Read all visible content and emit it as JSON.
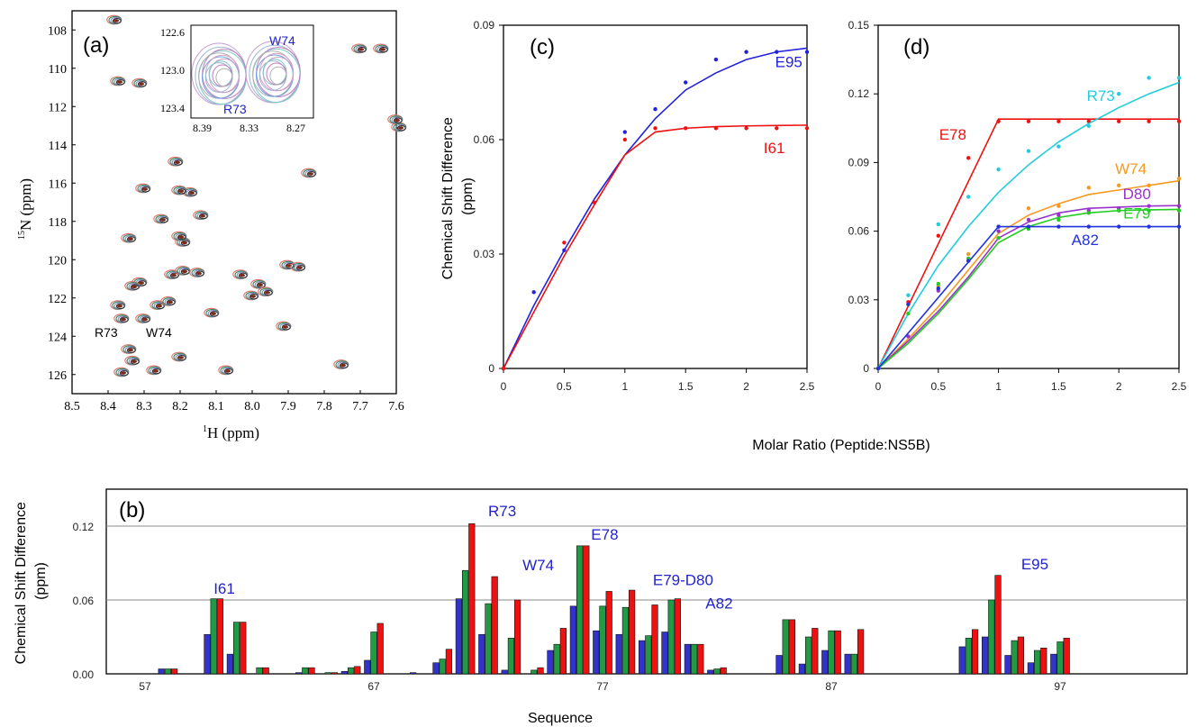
{
  "shared_xlabel": "Molar Ratio (Peptide:NS5B)",
  "chart_data": [
    {
      "panel": "(a)",
      "type": "scatter",
      "xlabel_sup": "1",
      "xlabel_main": "H (ppm)",
      "ylabel_sup": "15",
      "ylabel_main": "N (ppm)",
      "xlim": [
        8.5,
        7.6
      ],
      "ylim": [
        127,
        107
      ],
      "xticks": [
        "8.5",
        "8.4",
        "8.3",
        "8.2",
        "8.1",
        "8.0",
        "7.9",
        "7.8",
        "7.7",
        "7.6"
      ],
      "yticks": [
        "108",
        "110",
        "112",
        "114",
        "116",
        "118",
        "120",
        "122",
        "124",
        "126"
      ],
      "annotations": [
        "R73",
        "W74"
      ],
      "peaks": [
        [
          8.38,
          107.5
        ],
        [
          8.37,
          110.7
        ],
        [
          8.31,
          110.8
        ],
        [
          7.7,
          109.0
        ],
        [
          7.64,
          109.0
        ],
        [
          7.59,
          113.1
        ],
        [
          7.6,
          112.7
        ],
        [
          8.21,
          114.9
        ],
        [
          8.3,
          116.3
        ],
        [
          8.17,
          116.5
        ],
        [
          8.2,
          116.4
        ],
        [
          7.84,
          115.5
        ],
        [
          8.25,
          117.9
        ],
        [
          8.14,
          117.7
        ],
        [
          8.34,
          118.9
        ],
        [
          8.19,
          119.1
        ],
        [
          8.2,
          118.8
        ],
        [
          8.31,
          121.2
        ],
        [
          8.33,
          121.4
        ],
        [
          8.22,
          120.8
        ],
        [
          8.19,
          120.6
        ],
        [
          8.15,
          120.7
        ],
        [
          8.03,
          120.8
        ],
        [
          7.98,
          121.3
        ],
        [
          7.9,
          120.3
        ],
        [
          7.87,
          120.4
        ],
        [
          8.0,
          121.9
        ],
        [
          7.96,
          121.7
        ],
        [
          8.37,
          122.4
        ],
        [
          8.26,
          122.4
        ],
        [
          8.23,
          122.2
        ],
        [
          8.11,
          122.8
        ],
        [
          8.36,
          123.1
        ],
        [
          8.3,
          123.1
        ],
        [
          7.91,
          123.5
        ],
        [
          8.34,
          124.7
        ],
        [
          8.33,
          125.3
        ],
        [
          8.2,
          125.1
        ],
        [
          8.36,
          125.9
        ],
        [
          8.27,
          125.8
        ],
        [
          8.07,
          125.8
        ],
        [
          7.75,
          125.5
        ]
      ]
    },
    {
      "panel": "inset",
      "type": "scatter",
      "xticks": [
        "8.39",
        "8.33",
        "8.27"
      ],
      "yticks": [
        "122.6",
        "123.0",
        "123.4"
      ],
      "labels": [
        "W74",
        "R73"
      ]
    },
    {
      "panel": "(b)",
      "type": "bar",
      "xlabel": "Sequence",
      "ylabel": "Chemical Shift Difference (ppm)",
      "ylim": [
        0,
        0.15
      ],
      "yticks": [
        "0.00",
        "0.06",
        "0.12"
      ],
      "xticks": [
        "57",
        "67",
        "77",
        "87",
        "97"
      ],
      "x": [
        57,
        58,
        59,
        60,
        61,
        62,
        63,
        64,
        65,
        66,
        67,
        68,
        69,
        70,
        71,
        72,
        73,
        74,
        75,
        76,
        77,
        78,
        79,
        80,
        81,
        82,
        83,
        84,
        85,
        86,
        87,
        88,
        89,
        90,
        91,
        92,
        93,
        94,
        95,
        96,
        97,
        98
      ],
      "series": [
        {
          "color": "#3333cc",
          "values": [
            0,
            0.004,
            0,
            0.032,
            0.016,
            0,
            0,
            0.001,
            0,
            0.002,
            0.011,
            0,
            0.001,
            0.009,
            0.061,
            0.032,
            0.003,
            0,
            0.019,
            0.055,
            0.035,
            0.032,
            0.027,
            0.034,
            0.024,
            0.003,
            0,
            0,
            0.015,
            0.008,
            0.019,
            0.016,
            0,
            0,
            0,
            0,
            0.022,
            0.03,
            0.015,
            0.009,
            0.016,
            0
          ]
        },
        {
          "color": "#229944",
          "values": [
            0,
            0.004,
            0,
            0.061,
            0.042,
            0.005,
            0,
            0.005,
            0.001,
            0.005,
            0.034,
            0,
            0,
            0.012,
            0.084,
            0.057,
            0.029,
            0.003,
            0.024,
            0.104,
            0.055,
            0.054,
            0.031,
            0.06,
            0.024,
            0.004,
            0,
            0,
            0.044,
            0.03,
            0.035,
            0.016,
            0,
            0,
            0,
            0,
            0.029,
            0.06,
            0.027,
            0.019,
            0.026,
            0
          ]
        },
        {
          "color": "#ee1111",
          "values": [
            0,
            0.004,
            0,
            0.061,
            0.042,
            0.005,
            0,
            0.005,
            0.001,
            0.006,
            0.041,
            0,
            0,
            0.02,
            0.122,
            0.079,
            0.06,
            0.005,
            0.037,
            0.104,
            0.067,
            0.068,
            0.056,
            0.061,
            0.024,
            0.005,
            0,
            0,
            0.044,
            0.037,
            0.035,
            0.036,
            0,
            0,
            0,
            0,
            0.036,
            0.08,
            0.03,
            0.021,
            0.029,
            0
          ]
        }
      ],
      "labels": [
        {
          "text": "I61",
          "x": 60,
          "y": 0.065
        },
        {
          "text": "R73",
          "x": 72,
          "y": 0.128
        },
        {
          "text": "W74",
          "x": 73.5,
          "y": 0.084
        },
        {
          "text": "E78",
          "x": 76.5,
          "y": 0.109
        },
        {
          "text": "E79-D80",
          "x": 79.2,
          "y": 0.072
        },
        {
          "text": "A82",
          "x": 81.5,
          "y": 0.053
        },
        {
          "text": "E95",
          "x": 95.3,
          "y": 0.085
        }
      ]
    },
    {
      "panel": "(c)",
      "type": "line",
      "ylabel": "Chemical Shift Difference (ppm)",
      "xlim": [
        0,
        2.5
      ],
      "ylim": [
        0,
        0.09
      ],
      "xticks": [
        "0",
        "0.5",
        "1",
        "1.5",
        "2",
        "2.5"
      ],
      "yticks": [
        "0",
        "0.03",
        "0.06",
        "0.09"
      ],
      "series": [
        {
          "name": "E95",
          "color": "#2222dd",
          "label_pos": [
            2.35,
            0.079
          ],
          "x": [
            0,
            0.25,
            0.5,
            1,
            1.25,
            1.5,
            1.75,
            2,
            2.25,
            2.5
          ],
          "y": [
            0,
            0.02,
            0.031,
            0.062,
            0.068,
            0.075,
            0.081,
            0.083,
            0.083,
            0.083
          ],
          "fit": [
            [
              0,
              0
            ],
            [
              0.25,
              0.0165
            ],
            [
              0.5,
              0.031
            ],
            [
              0.75,
              0.0445
            ],
            [
              1,
              0.056
            ],
            [
              1.25,
              0.0655
            ],
            [
              1.5,
              0.073
            ],
            [
              1.75,
              0.0775
            ],
            [
              2,
              0.081
            ],
            [
              2.25,
              0.083
            ],
            [
              2.5,
              0.084
            ]
          ]
        },
        {
          "name": "I61",
          "color": "#ee1111",
          "label_pos": [
            2.23,
            0.0565
          ],
          "x": [
            0,
            0.5,
            0.75,
            1,
            1.25,
            1.5,
            1.75,
            2,
            2.25,
            2.5
          ],
          "y": [
            0,
            0.033,
            0.0435,
            0.06,
            0.063,
            0.063,
            0.063,
            0.063,
            0.063,
            0.063
          ],
          "fit": [
            [
              0,
              0
            ],
            [
              0.25,
              0.0148
            ],
            [
              0.5,
              0.0295
            ],
            [
              0.75,
              0.043
            ],
            [
              1,
              0.056
            ],
            [
              1.25,
              0.062
            ],
            [
              1.5,
              0.063
            ],
            [
              1.75,
              0.0634
            ],
            [
              2,
              0.0636
            ],
            [
              2.25,
              0.0637
            ],
            [
              2.5,
              0.0638
            ]
          ]
        }
      ]
    },
    {
      "panel": "(d)",
      "type": "line",
      "xlim": [
        0,
        2.5
      ],
      "ylim": [
        0,
        0.15
      ],
      "xticks": [
        "0",
        "0.5",
        "1",
        "1.5",
        "2",
        "2.5"
      ],
      "yticks": [
        "0",
        "0.03",
        "0.06",
        "0.09",
        "0.12",
        "0.15"
      ],
      "series": [
        {
          "name": "E78",
          "color": "#ee1111",
          "label_pos": [
            0.62,
            0.1
          ],
          "x": [
            0,
            0.25,
            0.5,
            0.75,
            1,
            1.25,
            1.5,
            1.75,
            2,
            2.25,
            2.5
          ],
          "y": [
            0,
            0.029,
            0.058,
            0.092,
            0.108,
            0.108,
            0.108,
            0.108,
            0.108,
            0.108,
            0.108
          ],
          "fit": [
            [
              0,
              0
            ],
            [
              1,
              0.109
            ],
            [
              2.5,
              0.109
            ]
          ]
        },
        {
          "name": "R73",
          "color": "#22ccdd",
          "label_pos": [
            1.85,
            0.117
          ],
          "x": [
            0,
            0.25,
            0.5,
            0.75,
            1,
            1.25,
            1.5,
            1.75,
            2,
            2.25,
            2.5
          ],
          "y": [
            0,
            0.032,
            0.063,
            0.075,
            0.087,
            0.095,
            0.097,
            0.106,
            0.12,
            0.127,
            0.127
          ],
          "fit": [
            [
              0,
              0
            ],
            [
              0.25,
              0.024
            ],
            [
              0.5,
              0.045
            ],
            [
              0.75,
              0.062
            ],
            [
              1,
              0.077
            ],
            [
              1.25,
              0.089
            ],
            [
              1.5,
              0.099
            ],
            [
              1.75,
              0.107
            ],
            [
              2,
              0.114
            ],
            [
              2.25,
              0.12
            ],
            [
              2.5,
              0.125
            ]
          ]
        },
        {
          "name": "W74",
          "color": "#f59a1f",
          "label_pos": [
            2.1,
            0.085
          ],
          "x": [
            0,
            0.25,
            0.5,
            0.75,
            1,
            1.25,
            1.5,
            1.75,
            2,
            2.25,
            2.5
          ],
          "y": [
            0,
            0.028,
            0.036,
            0.05,
            0.062,
            0.07,
            0.071,
            0.079,
            0.08,
            0.08,
            0.083
          ],
          "fit": [
            [
              0,
              0
            ],
            [
              0.25,
              0.013
            ],
            [
              0.5,
              0.027
            ],
            [
              0.75,
              0.043
            ],
            [
              1,
              0.059
            ],
            [
              1.25,
              0.067
            ],
            [
              1.5,
              0.072
            ],
            [
              1.75,
              0.076
            ],
            [
              2,
              0.078
            ],
            [
              2.25,
              0.08
            ],
            [
              2.5,
              0.082
            ]
          ]
        },
        {
          "name": "D80",
          "color": "#9933cc",
          "label_pos": [
            2.15,
            0.074
          ],
          "x": [
            0,
            0.25,
            0.5,
            0.75,
            1,
            1.25,
            1.5,
            1.75,
            2,
            2.25,
            2.5
          ],
          "y": [
            0,
            0.014,
            0.034,
            0.048,
            0.06,
            0.065,
            0.067,
            0.069,
            0.07,
            0.071,
            0.071
          ],
          "fit": [
            [
              0,
              0
            ],
            [
              0.25,
              0.012
            ],
            [
              0.5,
              0.025
            ],
            [
              0.75,
              0.04
            ],
            [
              1,
              0.057
            ],
            [
              1.25,
              0.064
            ],
            [
              1.5,
              0.068
            ],
            [
              1.75,
              0.07
            ],
            [
              2,
              0.0705
            ],
            [
              2.25,
              0.071
            ],
            [
              2.5,
              0.0712
            ]
          ]
        },
        {
          "name": "E79",
          "color": "#22cc22",
          "label_pos": [
            2.15,
            0.0655
          ],
          "x": [
            0,
            0.25,
            0.5,
            0.75,
            1,
            1.25,
            1.5,
            1.75,
            2,
            2.25,
            2.5
          ],
          "y": [
            0,
            0.024,
            0.037,
            0.048,
            0.057,
            0.061,
            0.065,
            0.068,
            0.069,
            0.069,
            0.069
          ],
          "fit": [
            [
              0,
              0
            ],
            [
              0.25,
              0.011
            ],
            [
              0.5,
              0.024
            ],
            [
              0.75,
              0.039
            ],
            [
              1,
              0.055
            ],
            [
              1.25,
              0.062
            ],
            [
              1.5,
              0.066
            ],
            [
              1.75,
              0.068
            ],
            [
              2,
              0.069
            ],
            [
              2.25,
              0.0693
            ],
            [
              2.5,
              0.0695
            ]
          ]
        },
        {
          "name": "A82",
          "color": "#2233dd",
          "label_pos": [
            1.72,
            0.054
          ],
          "x": [
            0,
            0.25,
            0.5,
            0.75,
            1,
            1.25,
            1.5,
            1.75,
            2,
            2.25,
            2.5
          ],
          "y": [
            0,
            0.028,
            0.035,
            0.047,
            0.062,
            0.062,
            0.062,
            0.062,
            0.062,
            0.062,
            0.062
          ],
          "fit": [
            [
              0,
              0
            ],
            [
              1,
              0.062
            ],
            [
              2.5,
              0.062
            ]
          ]
        }
      ]
    }
  ]
}
